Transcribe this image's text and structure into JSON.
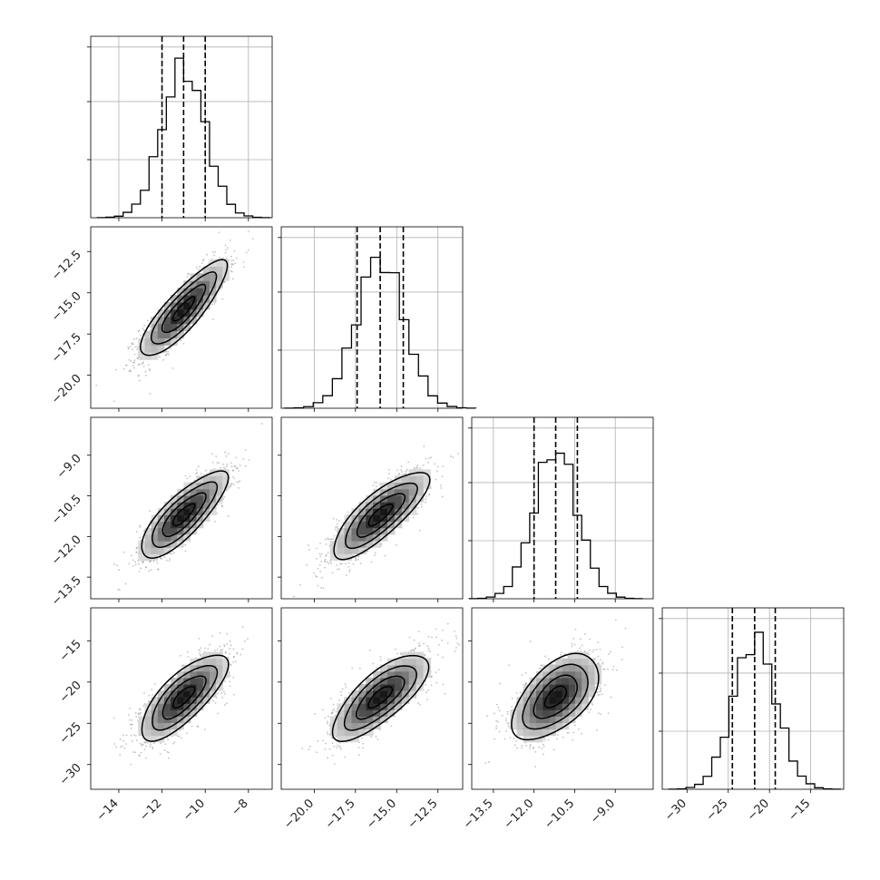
{
  "chart_data": {
    "type": "corner",
    "n_params": 4,
    "style": {
      "grid": true,
      "line_color": "#000000",
      "scatter_color": "#7a7a7a",
      "grid_color": "#b0b0b0"
    },
    "params": [
      {
        "range": [
          -15.3,
          -6.9
        ],
        "ticks": [
          -14,
          -12,
          -10,
          -8
        ],
        "tick_labels": [
          "−14",
          "−12",
          "−10",
          "−8"
        ],
        "quantiles": [
          -12.0,
          -11.0,
          -10.0
        ],
        "mean": -11.0,
        "sd": 1.0
      },
      {
        "range": [
          -22.0,
          -11.0
        ],
        "ticks": [
          -20.0,
          -17.5,
          -15.0,
          -12.5
        ],
        "tick_labels": [
          "−20.0",
          "−17.5",
          "−15.0",
          "−12.5"
        ],
        "quantiles": [
          -17.4,
          -16.0,
          -14.6
        ],
        "mean": -16.0,
        "sd": 1.45
      },
      {
        "range": [
          -14.3,
          -7.6
        ],
        "ticks": [
          -13.5,
          -12.0,
          -10.5,
          -9.0
        ],
        "tick_labels": [
          "−13.5",
          "−12.0",
          "−10.5",
          "−9.0"
        ],
        "quantiles": [
          -12.0,
          -11.2,
          -10.4
        ],
        "mean": -11.2,
        "sd": 0.8
      },
      {
        "range": [
          -33.0,
          -11.0
        ],
        "ticks": [
          -30,
          -25,
          -20,
          -15
        ],
        "tick_labels": [
          "−30",
          "−25",
          "−20",
          "−15"
        ],
        "quantiles": [
          -24.5,
          -21.8,
          -19.3
        ],
        "mean": -21.8,
        "sd": 2.6
      }
    ],
    "hist_bins": 20,
    "correlations": {
      "1-0": 0.85,
      "2-0": 0.8,
      "2-1": 0.8,
      "3-0": 0.75,
      "3-1": 0.75,
      "3-2": 0.55
    },
    "contour_levels_sigma": [
      0.5,
      1.0,
      1.5,
      2.0
    ]
  }
}
